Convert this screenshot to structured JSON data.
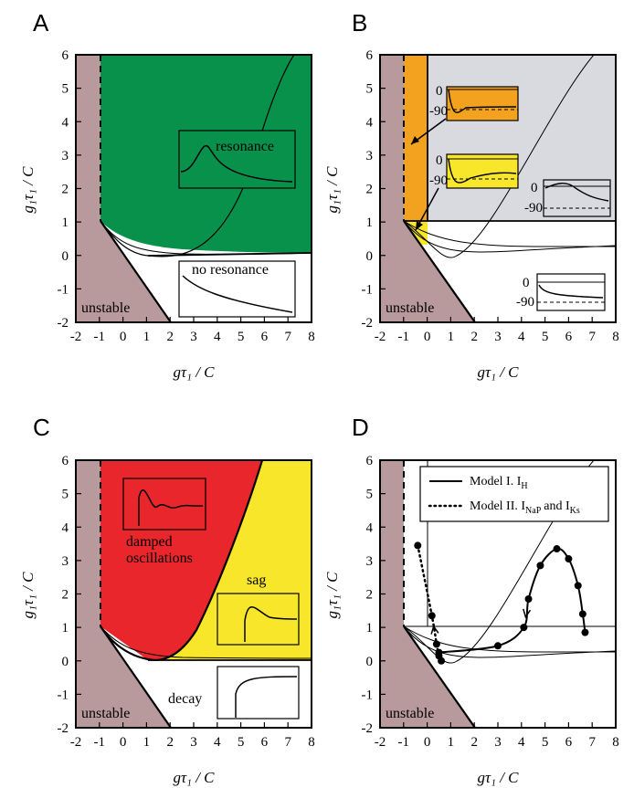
{
  "chart_data": [
    {
      "type": "area",
      "panel_label": "A",
      "xlabel": "gτ₁ / C",
      "ylabel": "g₁τ₁ / C",
      "xlim": [
        -2,
        8
      ],
      "ylim": [
        -2,
        6
      ],
      "xticks": [
        "-2",
        "-1",
        "0",
        "1",
        "2",
        "3",
        "4",
        "5",
        "6",
        "7",
        "8"
      ],
      "yticks": [
        "-2",
        "-1",
        "0",
        "1",
        "2",
        "3",
        "4",
        "5",
        "6"
      ],
      "region_labels": {
        "upper": "resonance",
        "lower": "no resonance",
        "unstable": "unstable"
      },
      "colors": {
        "upper": "#07914a",
        "unstable": "#b99a9c"
      }
    },
    {
      "type": "area",
      "panel_label": "B",
      "xlabel": "gτ₁ / C",
      "ylabel": "g₁τ₁ / C",
      "xlim": [
        -2,
        8
      ],
      "ylim": [
        -2,
        6
      ],
      "xticks": [
        "-2",
        "-1",
        "0",
        "1",
        "2",
        "3",
        "4",
        "5",
        "6",
        "7",
        "8"
      ],
      "yticks": [
        "-2",
        "-1",
        "0",
        "1",
        "2",
        "3",
        "4",
        "5",
        "6"
      ],
      "region_labels": {
        "unstable": "unstable"
      },
      "inset_labels": {
        "zero": "0",
        "minus90": "-90"
      },
      "colors": {
        "orange": "#f2a21f",
        "yellow": "#f7e62a",
        "gray": "#d9d9e0",
        "unstable": "#b99a9c"
      }
    },
    {
      "type": "area",
      "panel_label": "C",
      "xlabel": "gτ₁ / C",
      "ylabel": "g₁τ₁ / C",
      "xlim": [
        -2,
        8
      ],
      "ylim": [
        -2,
        6
      ],
      "xticks": [
        "-2",
        "-1",
        "0",
        "1",
        "2",
        "3",
        "4",
        "5",
        "6",
        "7",
        "8"
      ],
      "yticks": [
        "-2",
        "-1",
        "0",
        "1",
        "2",
        "3",
        "4",
        "5",
        "6"
      ],
      "region_labels": {
        "red_line1": "damped",
        "red_line2": "oscillations",
        "yellow": "sag",
        "white": "decay",
        "unstable": "unstable"
      },
      "colors": {
        "red": "#e8262b",
        "yellow": "#f7e62a",
        "unstable": "#b99a9c"
      }
    },
    {
      "type": "line",
      "panel_label": "D",
      "xlabel": "gτ₁ / C",
      "ylabel": "g₁τ₁ / C",
      "xlim": [
        -2,
        8
      ],
      "ylim": [
        -2,
        6
      ],
      "xticks": [
        "-2",
        "-1",
        "0",
        "1",
        "2",
        "3",
        "4",
        "5",
        "6",
        "7",
        "8"
      ],
      "yticks": [
        "-2",
        "-1",
        "0",
        "1",
        "2",
        "3",
        "4",
        "5",
        "6"
      ],
      "region_labels": {
        "unstable": "unstable"
      },
      "legend": {
        "placement": "top-right",
        "entries": [
          "Model I. I",
          "Model II. I",
          "and I"
        ],
        "subscripts": [
          "H",
          "NaP",
          "Ks"
        ]
      },
      "series": [
        {
          "name": "Model I. I_H",
          "style": "solid",
          "x": [
            0.5,
            3.0,
            4.1,
            4.3,
            4.8,
            5.5,
            6.0,
            6.4,
            6.6,
            6.7
          ],
          "y": [
            0.25,
            0.45,
            1.0,
            1.85,
            2.85,
            3.35,
            3.05,
            2.25,
            1.4,
            0.85
          ]
        },
        {
          "name": "Model II. I_NaP and I_Ks",
          "style": "dotted",
          "x": [
            -0.4,
            0.2,
            0.4,
            0.5,
            0.6
          ],
          "y": [
            3.45,
            1.35,
            0.5,
            0.15,
            0.0
          ]
        }
      ],
      "colors": {
        "unstable": "#b99a9c"
      }
    }
  ]
}
